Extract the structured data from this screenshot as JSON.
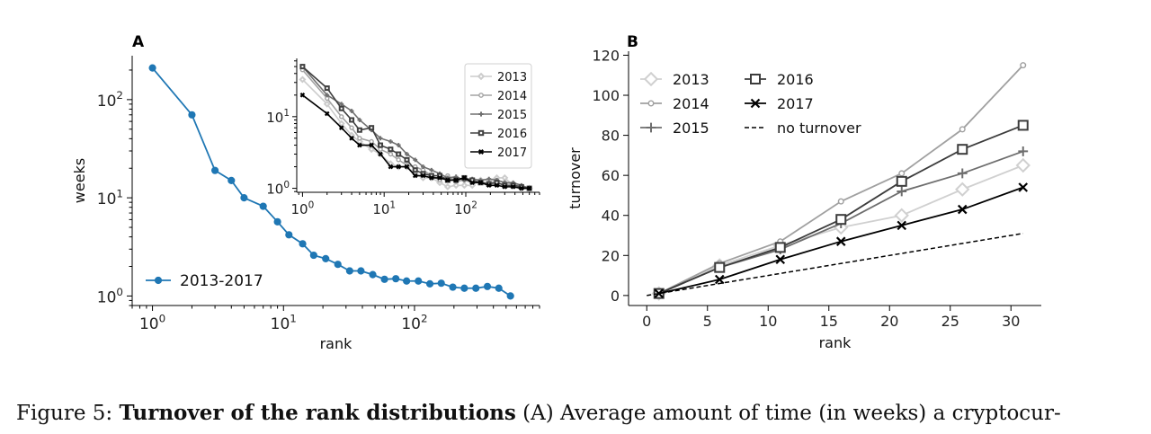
{
  "caption": {
    "label": "Figure 5:",
    "bold": "Turnover of the rank distributions",
    "text": "(A) Average amount of time (in weeks) a cryptocur-"
  },
  "chart_data": [
    {
      "panel": "A",
      "type": "line",
      "xscale": "log",
      "yscale": "log",
      "xlabel": "rank",
      "ylabel": "weeks",
      "xlim": [
        0.7,
        900
      ],
      "ylim": [
        0.8,
        280
      ],
      "xticks": [
        {
          "v": 1,
          "label": "10^0"
        },
        {
          "v": 10,
          "label": "10^1"
        },
        {
          "v": 100,
          "label": "10^2"
        }
      ],
      "yticks": [
        {
          "v": 1,
          "label": "10^0"
        },
        {
          "v": 10,
          "label": "10^1"
        },
        {
          "v": 100,
          "label": "10^2"
        }
      ],
      "legend_position": "lower-left",
      "color": "#1f77b4",
      "series": [
        {
          "name": "2013-2017",
          "x": [
            1,
            2,
            3,
            4,
            5,
            7,
            9,
            11,
            14,
            17,
            21,
            26,
            32,
            39,
            48,
            59,
            72,
            87,
            107,
            131,
            160,
            196,
            240,
            294,
            360,
            440,
            540
          ],
          "y": [
            210,
            70,
            19,
            15,
            10,
            8.2,
            5.7,
            4.2,
            3.4,
            2.6,
            2.4,
            2.1,
            1.8,
            1.8,
            1.65,
            1.48,
            1.5,
            1.42,
            1.42,
            1.33,
            1.35,
            1.23,
            1.2,
            1.2,
            1.25,
            1.2,
            1.0
          ]
        }
      ]
    },
    {
      "panel": "A-inset",
      "type": "line",
      "xscale": "log",
      "yscale": "log",
      "xlim": [
        0.85,
        800
      ],
      "ylim": [
        0.88,
        65
      ],
      "xticks": [
        {
          "v": 1,
          "label": "10^0"
        },
        {
          "v": 10,
          "label": "10^1"
        },
        {
          "v": 100,
          "label": "10^2"
        }
      ],
      "yticks": [
        {
          "v": 1,
          "label": "10^0"
        },
        {
          "v": 10,
          "label": "10^1"
        }
      ],
      "legend_position": "top-right",
      "series": [
        {
          "name": "2013",
          "color": "#cccccc",
          "marker": "diamond",
          "x": [
            1,
            2,
            3,
            4,
            5,
            7,
            9,
            12,
            15,
            19,
            24,
            30,
            38,
            48,
            60,
            76,
            96,
            120,
            152,
            192,
            240,
            300,
            380,
            480,
            600
          ],
          "y": [
            33,
            15,
            8,
            5.5,
            4.5,
            3.5,
            3,
            2.2,
            2,
            2,
            1.6,
            1.4,
            1.4,
            1.2,
            1.05,
            1.1,
            1.1,
            1.1,
            1.3,
            1.3,
            1.4,
            1.4,
            1.1,
            1.0,
            1.0
          ]
        },
        {
          "name": "2014",
          "color": "#a3a3a3",
          "marker": "circle",
          "x": [
            1,
            2,
            3,
            4,
            5,
            7,
            9,
            12,
            15,
            19,
            24,
            30,
            38,
            48,
            60,
            76,
            96,
            120,
            152,
            192,
            240,
            300,
            380,
            480,
            600
          ],
          "y": [
            45,
            18,
            10,
            7,
            5,
            4.5,
            3.5,
            3,
            2.5,
            2.1,
            2,
            1.8,
            1.5,
            1.3,
            1.5,
            1.25,
            1.3,
            1.2,
            1.25,
            1.15,
            1.3,
            1.2,
            1.15,
            1.05,
            1.0
          ]
        },
        {
          "name": "2015",
          "color": "#707070",
          "marker": "plus",
          "x": [
            1,
            2,
            3,
            4,
            5,
            7,
            9,
            12,
            15,
            19,
            24,
            30,
            38,
            48,
            60,
            76,
            96,
            120,
            152,
            192,
            240,
            300,
            380,
            480,
            600
          ],
          "y": [
            50,
            20,
            15,
            12,
            9,
            6.5,
            5,
            4.5,
            4,
            3,
            2.5,
            2,
            1.8,
            1.6,
            1.4,
            1.45,
            1.3,
            1.35,
            1.3,
            1.35,
            1.3,
            1.2,
            1.2,
            1.1,
            1.0
          ]
        },
        {
          "name": "2016",
          "color": "#404040",
          "marker": "square",
          "x": [
            1,
            2,
            3,
            4,
            5,
            7,
            9,
            12,
            15,
            19,
            24,
            30,
            38,
            48,
            60,
            76,
            96,
            120,
            152,
            192,
            240,
            300,
            380,
            480,
            600
          ],
          "y": [
            50,
            25,
            13,
            9,
            6.5,
            7,
            4,
            3.5,
            3,
            2.5,
            1.8,
            1.6,
            1.5,
            1.5,
            1.3,
            1.3,
            1.4,
            1.3,
            1.2,
            1.15,
            1.2,
            1.1,
            1.1,
            1.05,
            1.0
          ]
        },
        {
          "name": "2017",
          "color": "#000000",
          "marker": "x",
          "x": [
            1,
            2,
            3,
            4,
            5,
            7,
            9,
            12,
            15,
            19,
            24,
            30,
            38,
            48,
            60,
            76,
            96,
            120,
            152,
            192,
            240,
            300,
            380,
            480,
            600
          ],
          "y": [
            20,
            11,
            7,
            5,
            4,
            4,
            3,
            2,
            2,
            2,
            1.5,
            1.5,
            1.4,
            1.4,
            1.3,
            1.3,
            1.4,
            1.2,
            1.2,
            1.1,
            1.1,
            1.05,
            1.05,
            1.0,
            1.0
          ]
        }
      ]
    },
    {
      "panel": "B",
      "type": "line",
      "xscale": "linear",
      "yscale": "linear",
      "xlabel": "rank",
      "ylabel": "turnover",
      "xlim": [
        -1.5,
        32.5
      ],
      "ylim": [
        -5,
        122
      ],
      "xticks": [
        0,
        5,
        10,
        15,
        20,
        25,
        30
      ],
      "yticks": [
        0,
        20,
        40,
        60,
        80,
        100,
        120
      ],
      "legend_position": "top-left",
      "x": [
        1,
        6,
        11,
        16,
        21,
        26,
        31
      ],
      "series": [
        {
          "name": "2013",
          "color": "#d0d0d0",
          "marker": "diamond",
          "values": [
            1,
            15,
            25,
            34,
            40,
            53,
            65
          ]
        },
        {
          "name": "2014",
          "color": "#a0a0a0",
          "marker": "circle",
          "values": [
            1,
            16,
            27,
            47,
            61,
            83,
            115
          ]
        },
        {
          "name": "2015",
          "color": "#6e6e6e",
          "marker": "plus",
          "values": [
            1,
            14,
            23,
            36,
            52,
            61,
            72
          ]
        },
        {
          "name": "2016",
          "color": "#3c3c3c",
          "marker": "square",
          "values": [
            1,
            14,
            24,
            38,
            57,
            73,
            85
          ]
        },
        {
          "name": "2017",
          "color": "#000000",
          "marker": "x",
          "values": [
            1,
            8,
            18,
            27,
            35,
            43,
            54
          ]
        },
        {
          "name": "no turnover",
          "color": "#000000",
          "marker": "none",
          "dashed": true,
          "x": [
            0,
            31
          ],
          "values": [
            0,
            31
          ]
        }
      ]
    }
  ]
}
